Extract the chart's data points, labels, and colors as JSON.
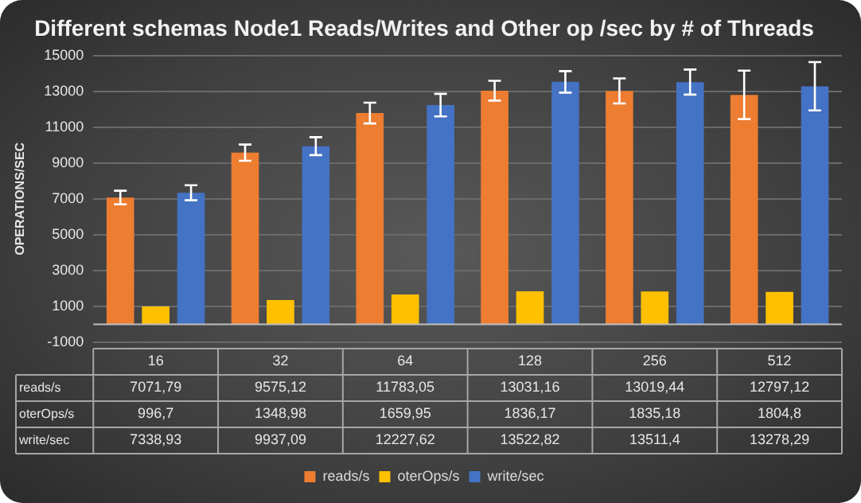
{
  "chart_data": {
    "type": "bar",
    "title": "Different schemas Node1 Reads/Writes and Other op /sec by # of Threads",
    "ylabel": "OPERATIONS/SEC",
    "categories": [
      "16",
      "32",
      "64",
      "128",
      "256",
      "512"
    ],
    "series": [
      {
        "name": "reads/s",
        "color": "#ed7d31",
        "values": [
          7071.79,
          9575.12,
          11783.05,
          13031.16,
          13019.44,
          12797.12
        ],
        "errors": [
          380,
          450,
          580,
          550,
          700,
          1350
        ],
        "value_labels": [
          "7071,79",
          "9575,12",
          "11783,05",
          "13031,16",
          "13019,44",
          "12797,12"
        ]
      },
      {
        "name": "oterOps/s",
        "color": "#ffc000",
        "values": [
          996.7,
          1348.98,
          1659.95,
          1836.17,
          1835.18,
          1804.8
        ],
        "value_labels": [
          "996,7",
          "1348,98",
          "1659,95",
          "1836,17",
          "1835,18",
          "1804,8"
        ]
      },
      {
        "name": "write/sec",
        "color": "#4472c4",
        "values": [
          7338.93,
          9937.09,
          12227.62,
          13522.82,
          13511.4,
          13278.29
        ],
        "errors": [
          420,
          500,
          630,
          600,
          700,
          1350
        ],
        "value_labels": [
          "7338,93",
          "9937,09",
          "12227,62",
          "13522,82",
          "13511,4",
          "13278,29"
        ]
      }
    ],
    "ylim": [
      -1000,
      15000
    ],
    "yticks": [
      -1000,
      1000,
      3000,
      5000,
      7000,
      9000,
      11000,
      13000,
      15000
    ],
    "grid": "y",
    "legend": "bottom"
  }
}
